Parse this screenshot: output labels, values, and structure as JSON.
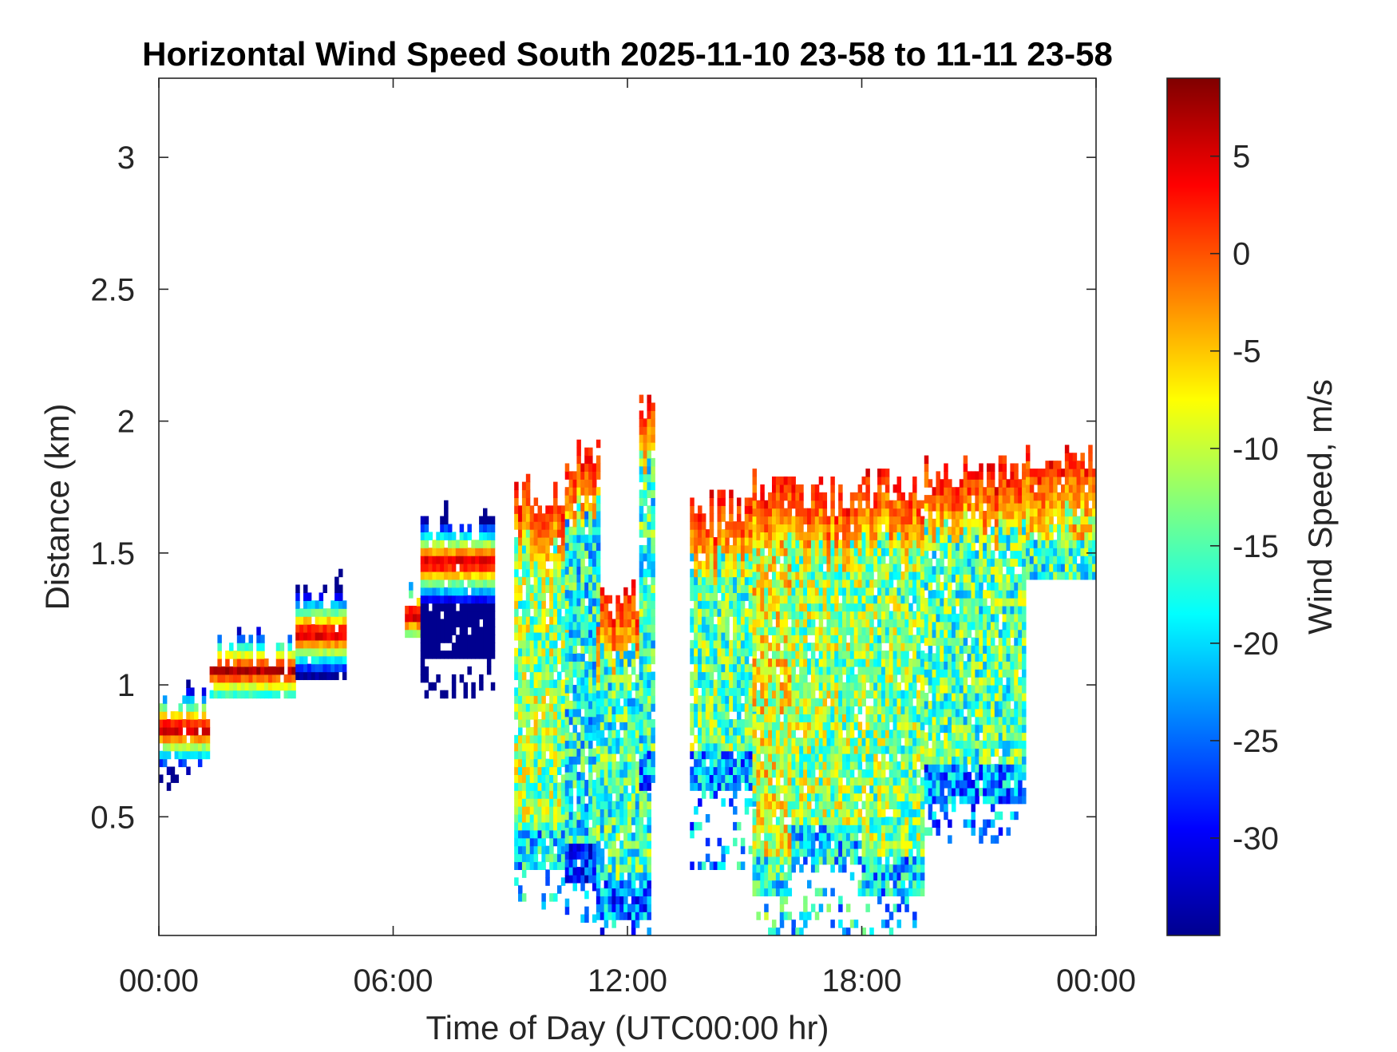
{
  "chart_data": {
    "type": "heatmap",
    "title": "Horizontal Wind Speed South 2025-11-10 23-58 to 11-11 23-58",
    "xlabel": "Time of Day (UTC00:00 hr)",
    "ylabel": "Distance (km)",
    "colorbar_label": "Wind Speed, m/s",
    "x_unit": "hours",
    "xlim": [
      0,
      24
    ],
    "ylim": [
      0.05,
      3.3
    ],
    "clim": [
      -35,
      9
    ],
    "x_ticks": [
      {
        "value": 0,
        "label": "00:00"
      },
      {
        "value": 6,
        "label": "06:00"
      },
      {
        "value": 12,
        "label": "12:00"
      },
      {
        "value": 18,
        "label": "18:00"
      },
      {
        "value": 24,
        "label": "00:00"
      }
    ],
    "y_ticks": [
      {
        "value": 0.5,
        "label": "0.5"
      },
      {
        "value": 1,
        "label": "1"
      },
      {
        "value": 1.5,
        "label": "1.5"
      },
      {
        "value": 2,
        "label": "2"
      },
      {
        "value": 2.5,
        "label": "2.5"
      },
      {
        "value": 3,
        "label": "3"
      }
    ],
    "colorbar_ticks": [
      {
        "value": 5,
        "label": "5"
      },
      {
        "value": 0,
        "label": "0"
      },
      {
        "value": -5,
        "label": "-5"
      },
      {
        "value": -10,
        "label": "-10"
      },
      {
        "value": -15,
        "label": "-15"
      },
      {
        "value": -20,
        "label": "-20"
      },
      {
        "value": -25,
        "label": "-25"
      },
      {
        "value": -30,
        "label": "-30"
      }
    ],
    "colormap": "jet",
    "grid": false,
    "profiles": [
      {
        "t0": 0.0,
        "t1": 1.3,
        "bottom": 0.72,
        "top": 0.92,
        "sparse_bottom": 0.6,
        "core": 0.82
      },
      {
        "t0": 1.3,
        "t1": 3.5,
        "bottom": 0.95,
        "top": 1.12,
        "core": 1.04
      },
      {
        "t0": 3.5,
        "t1": 4.7,
        "bottom": 1.02,
        "top": 1.35,
        "core": 1.18
      },
      {
        "t0": 6.3,
        "t1": 6.7,
        "bottom": 1.18,
        "top": 1.3,
        "core": 1.25
      },
      {
        "t0": 6.7,
        "t1": 8.5,
        "bottom": 1.1,
        "top": 1.6,
        "sparse_bottom": 0.95,
        "core": 1.45
      },
      {
        "t0": 9.1,
        "t1": 10.4,
        "bottom": 0.3,
        "top": 1.72,
        "sparse_bottom": 0.15,
        "core": 1.6,
        "mid": -12
      },
      {
        "t0": 10.4,
        "t1": 11.2,
        "bottom": 0.25,
        "top": 1.85,
        "sparse_bottom": 0.1,
        "core": 1.8,
        "mid": -18
      },
      {
        "t0": 11.2,
        "t1": 12.5,
        "bottom": 0.1,
        "top": 1.3,
        "sparse_bottom": 0.05,
        "core": 1.15,
        "mid": -16
      },
      {
        "t0": 12.3,
        "t1": 12.7,
        "bottom": 0.6,
        "top": 2.05,
        "core": 2.0,
        "mid": -16
      },
      {
        "t0": 13.6,
        "t1": 15.2,
        "bottom": 0.6,
        "top": 1.65,
        "sparse_bottom": 0.3,
        "core": 1.4,
        "mid": -14
      },
      {
        "t0": 15.2,
        "t1": 16.2,
        "bottom": 0.2,
        "top": 1.75,
        "sparse_bottom": 0.05,
        "core": 1.1,
        "mid": -9
      },
      {
        "t0": 16.2,
        "t1": 18.0,
        "bottom": 0.3,
        "top": 1.7,
        "sparse_bottom": 0.05,
        "core": 1.5,
        "mid": -12
      },
      {
        "t0": 18.0,
        "t1": 19.6,
        "bottom": 0.2,
        "top": 1.75,
        "sparse_bottom": 0.05,
        "core": 1.55,
        "mid": -13
      },
      {
        "t0": 19.6,
        "t1": 22.2,
        "bottom": 0.55,
        "top": 1.8,
        "sparse_bottom": 0.4,
        "core": 1.55,
        "mid": -15
      },
      {
        "t0": 22.2,
        "t1": 24.0,
        "bottom": 1.4,
        "top": 1.85,
        "core": 1.65,
        "mid": -8
      }
    ]
  }
}
